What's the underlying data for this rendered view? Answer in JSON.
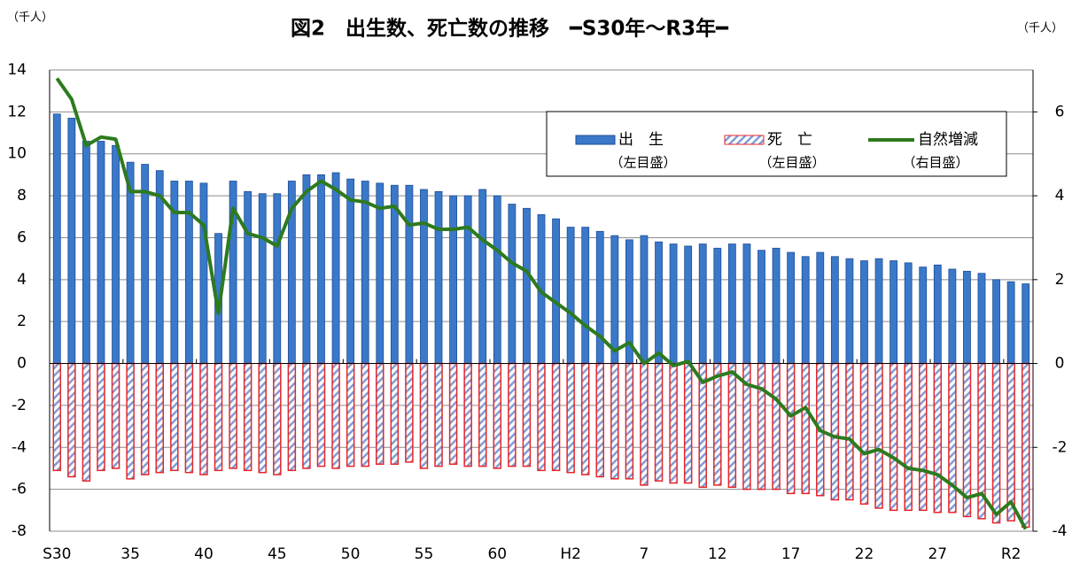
{
  "chart_data": {
    "type": "bar-line",
    "title": "図2　出生数、死亡数の推移　━S30年～R3年━",
    "y_unit_label": "（千人）",
    "y2_unit_label": "（千人）",
    "categories": [
      "S30",
      null,
      null,
      null,
      null,
      "35",
      null,
      null,
      null,
      null,
      "40",
      null,
      null,
      null,
      null,
      "45",
      null,
      null,
      null,
      null,
      "50",
      null,
      null,
      null,
      null,
      "55",
      null,
      null,
      null,
      null,
      "60",
      null,
      null,
      null,
      null,
      "H2",
      null,
      null,
      null,
      null,
      "7",
      null,
      null,
      null,
      null,
      "12",
      null,
      null,
      null,
      null,
      "17",
      null,
      null,
      null,
      null,
      "22",
      null,
      null,
      null,
      null,
      "27",
      null,
      null,
      null,
      null,
      "R2",
      null
    ],
    "series": [
      {
        "name": "出　生",
        "scale_label": "（左目盛）",
        "kind": "bar",
        "color": "#3a78c9",
        "values": [
          11.9,
          11.7,
          10.6,
          10.6,
          10.4,
          9.6,
          9.5,
          9.2,
          8.7,
          8.7,
          8.6,
          6.2,
          8.7,
          8.2,
          8.1,
          8.1,
          8.7,
          9.0,
          9.0,
          9.1,
          8.8,
          8.7,
          8.6,
          8.5,
          8.5,
          8.3,
          8.2,
          8.0,
          8.0,
          8.3,
          8.0,
          7.6,
          7.4,
          7.1,
          6.9,
          6.5,
          6.5,
          6.3,
          6.1,
          5.9,
          6.1,
          5.8,
          5.7,
          5.6,
          5.7,
          5.5,
          5.7,
          5.7,
          5.4,
          5.5,
          5.3,
          5.1,
          5.3,
          5.1,
          5.0,
          4.9,
          5.0,
          4.9,
          4.8,
          4.6,
          4.7,
          4.5,
          4.4,
          4.3,
          4.0,
          3.9,
          3.8
        ]
      },
      {
        "name": "死　亡",
        "scale_label": "（左目盛）",
        "kind": "hatched-bar",
        "color": "#e8242a",
        "values": [
          -5.1,
          -5.4,
          -5.6,
          -5.1,
          -5.0,
          -5.5,
          -5.3,
          -5.2,
          -5.1,
          -5.2,
          -5.3,
          -5.1,
          -5.0,
          -5.1,
          -5.2,
          -5.3,
          -5.1,
          -5.0,
          -4.9,
          -5.0,
          -4.9,
          -4.9,
          -4.8,
          -4.8,
          -4.7,
          -5.0,
          -4.9,
          -4.8,
          -4.9,
          -4.9,
          -5.0,
          -4.9,
          -4.9,
          -5.1,
          -5.1,
          -5.2,
          -5.3,
          -5.4,
          -5.5,
          -5.5,
          -5.8,
          -5.6,
          -5.7,
          -5.7,
          -5.9,
          -5.8,
          -5.9,
          -6.0,
          -6.0,
          -6.0,
          -6.2,
          -6.2,
          -6.3,
          -6.5,
          -6.5,
          -6.7,
          -6.9,
          -7.0,
          -7.0,
          -7.0,
          -7.1,
          -7.1,
          -7.3,
          -7.4,
          -7.6,
          -7.5,
          -7.8
        ]
      },
      {
        "name": "自然増減",
        "scale_label": "（右目盛）",
        "kind": "line",
        "axis": "y2",
        "color": "#2d7a1f",
        "values": [
          6.8,
          6.3,
          5.2,
          5.4,
          5.35,
          4.1,
          4.1,
          4.0,
          3.6,
          3.6,
          3.3,
          1.2,
          3.7,
          3.1,
          3.0,
          2.8,
          3.7,
          4.1,
          4.35,
          4.15,
          3.9,
          3.85,
          3.7,
          3.75,
          3.3,
          3.35,
          3.2,
          3.2,
          3.25,
          2.95,
          2.7,
          2.4,
          2.2,
          1.7,
          1.45,
          1.2,
          0.9,
          0.65,
          0.3,
          0.5,
          0,
          0.25,
          -0.05,
          0.05,
          -0.45,
          -0.3,
          -0.2,
          -0.5,
          -0.6,
          -0.85,
          -1.25,
          -1.05,
          -1.6,
          -1.75,
          -1.8,
          -2.15,
          -2.05,
          -2.25,
          -2.5,
          -2.55,
          -2.65,
          -2.9,
          -3.2,
          -3.1,
          -3.6,
          -3.3,
          -3.95
        ]
      }
    ],
    "ylim": [
      -8,
      14
    ],
    "yticks": [
      -8,
      -6,
      -4,
      -2,
      0,
      2,
      4,
      6,
      8,
      10,
      12,
      14
    ],
    "y2lim": [
      -4,
      7
    ],
    "y2ticks": [
      -4,
      -2,
      0,
      2,
      4,
      6
    ],
    "grid": true
  }
}
